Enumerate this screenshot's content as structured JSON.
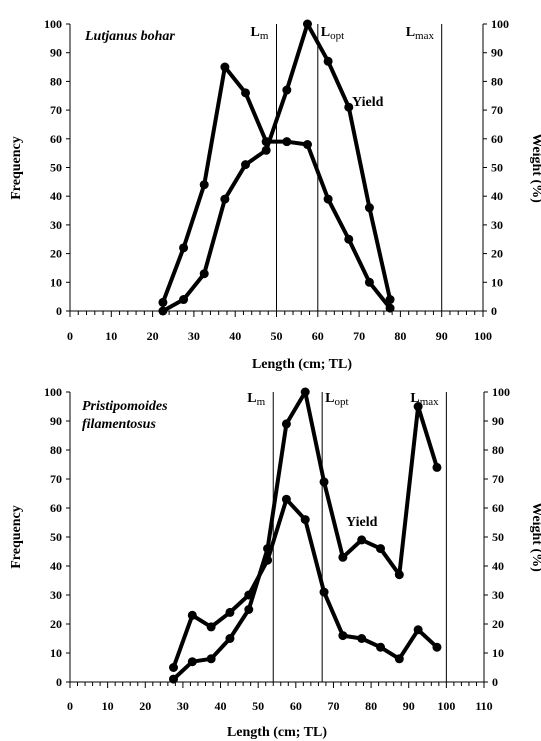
{
  "chart_data": [
    {
      "type": "line",
      "species": "Lutjanus bohar",
      "xlabel": "Length (cm; TL)",
      "ylabel_left": "Frequency",
      "ylabel_right": "Weight (%)",
      "xlim": [
        0,
        100
      ],
      "x_ticks": [
        "0",
        "10",
        "20",
        "30",
        "40",
        "50",
        "60",
        "70",
        "80",
        "90",
        "100"
      ],
      "ylim": [
        0,
        100
      ],
      "y_ticks": [
        "0",
        "10",
        "20",
        "30",
        "40",
        "50",
        "60",
        "70",
        "80",
        "90",
        "100"
      ],
      "grid": false,
      "vlines": [
        {
          "x": 50,
          "label": "L",
          "sub": "m"
        },
        {
          "x": 60,
          "label": "L",
          "sub": "opt"
        },
        {
          "x": 90,
          "label": "L",
          "sub": "max"
        }
      ],
      "series": [
        {
          "marker": "circle",
          "x": [
            22.5,
            27.5,
            32.5,
            37.5,
            42.5,
            47.5,
            52.5,
            57.5,
            62.5,
            67.5,
            72.5,
            77.5
          ],
          "values": [
            3,
            22,
            44,
            85,
            76,
            59,
            59,
            58,
            39,
            25,
            10,
            1
          ]
        },
        {
          "name": "Yield",
          "marker": "circle",
          "x": [
            22.5,
            27.5,
            32.5,
            37.5,
            42.5,
            47.5,
            52.5,
            57.5,
            62.5,
            67.5,
            72.5,
            77.5
          ],
          "values": [
            0,
            4,
            13,
            39,
            51,
            56,
            77,
            100,
            87,
            71,
            36,
            4
          ]
        }
      ],
      "annotations": [
        {
          "text": "Yield",
          "x": 70,
          "y": 72
        }
      ]
    },
    {
      "type": "line",
      "species": "Pristipomoides filamentosus",
      "species_line1": "Pristipomoides",
      "species_line2": "filamentosus",
      "xlabel": "Length (cm; TL)",
      "ylabel_left": "Frequency",
      "ylabel_right": "Weight (%)",
      "xlim": [
        0,
        110
      ],
      "x_ticks": [
        "0",
        "10",
        "20",
        "30",
        "40",
        "50",
        "60",
        "70",
        "80",
        "90",
        "100",
        "110"
      ],
      "ylim": [
        0,
        100
      ],
      "y_ticks": [
        "0",
        "10",
        "20",
        "30",
        "40",
        "50",
        "60",
        "70",
        "80",
        "90",
        "100"
      ],
      "grid": false,
      "vlines": [
        {
          "x": 54,
          "label": "L",
          "sub": "m"
        },
        {
          "x": 67,
          "label": "L",
          "sub": "opt"
        },
        {
          "x": 100,
          "label": "L",
          "sub": "max"
        }
      ],
      "series": [
        {
          "marker": "circle",
          "x": [
            27.5,
            32.5,
            37.5,
            42.5,
            47.5,
            52.5,
            57.5,
            62.5,
            67.5,
            72.5,
            77.5,
            82.5,
            87.5,
            92.5,
            97.5
          ],
          "values": [
            5,
            23,
            19,
            24,
            30,
            42,
            63,
            56,
            31,
            16,
            15,
            12,
            8,
            18,
            12
          ]
        },
        {
          "name": "Yield",
          "marker": "circle",
          "x": [
            27.5,
            32.5,
            37.5,
            42.5,
            47.5,
            52.5,
            57.5,
            62.5,
            67.5,
            72.5,
            77.5,
            82.5,
            87.5,
            92.5,
            97.5
          ],
          "values": [
            1,
            7,
            8,
            15,
            25,
            46,
            89,
            100,
            69,
            43,
            49,
            46,
            37,
            95,
            74
          ]
        }
      ],
      "annotations": [
        {
          "text": "Yield",
          "x": 76,
          "y": 56
        }
      ]
    }
  ]
}
